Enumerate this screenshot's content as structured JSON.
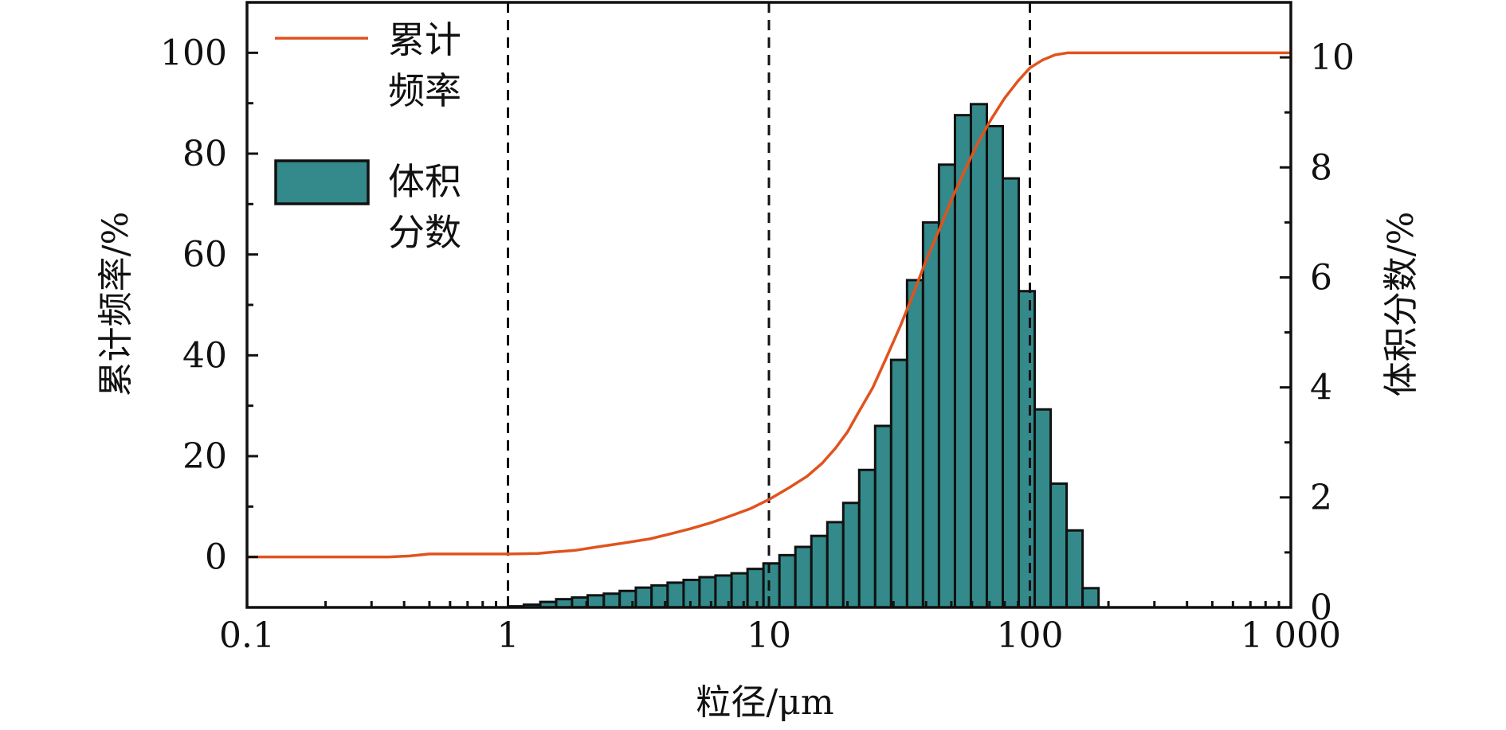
{
  "chart_data": {
    "type": "bar",
    "xlabel": "粒径/μm",
    "ylabel_left": "累计频率/%",
    "ylabel_right": "体积分数/%",
    "x_scale": "log",
    "xlim": [
      0.1,
      1000
    ],
    "x_ticks": [
      0.1,
      1,
      10,
      100,
      1000
    ],
    "x_tick_labels": [
      "0.1",
      "1",
      "10",
      "100",
      "1 000"
    ],
    "ylim_left": [
      -10,
      110
    ],
    "y_ticks_left": [
      0,
      20,
      40,
      60,
      80,
      100
    ],
    "y_tick_labels_left": [
      "0",
      "20",
      "40",
      "60",
      "80",
      "100"
    ],
    "ylim_right": [
      0,
      11
    ],
    "y_ticks_right": [
      0,
      2,
      4,
      6,
      8,
      10
    ],
    "y_tick_labels_right": [
      "0",
      "2",
      "4",
      "6",
      "8",
      "10"
    ],
    "reference_lines_x": [
      1,
      10,
      100
    ],
    "legend": {
      "position": "top-left",
      "entries": [
        {
          "series": "cumulative",
          "lines": [
            "累计",
            "频率"
          ]
        },
        {
          "series": "volume",
          "lines": [
            "体积",
            "分数"
          ]
        }
      ]
    },
    "series": [
      {
        "name": "累计频率",
        "kind": "line",
        "axis": "left",
        "color": "#E0531E",
        "x": [
          0.1,
          0.2,
          0.35,
          0.42,
          0.5,
          0.7,
          1.0,
          1.3,
          1.5,
          1.8,
          2.2,
          2.8,
          3.5,
          4.2,
          5.0,
          6.0,
          7.0,
          8.5,
          10.0,
          12.0,
          14.0,
          16.0,
          18.0,
          20.0,
          22.0,
          25.0,
          28.0,
          32.0,
          36.0,
          40.0,
          45.0,
          50.0,
          56.0,
          63.0,
          71.0,
          80.0,
          90.0,
          100.0,
          112.0,
          125.0,
          140.0,
          160.0,
          200.0,
          300.0,
          1000.0
        ],
        "values": [
          0,
          0,
          0,
          0.2,
          0.6,
          0.6,
          0.6,
          0.7,
          1.0,
          1.3,
          2.0,
          2.8,
          3.6,
          4.6,
          5.6,
          6.8,
          8.0,
          9.6,
          11.4,
          13.8,
          16.0,
          18.6,
          21.6,
          24.8,
          28.6,
          33.6,
          39.2,
          46.0,
          52.6,
          58.8,
          65.0,
          70.8,
          76.4,
          82.0,
          86.8,
          91.0,
          94.4,
          97.0,
          98.6,
          99.6,
          100,
          100,
          100,
          100,
          100
        ]
      },
      {
        "name": "体积分数",
        "kind": "bar",
        "axis": "right",
        "color": "#34898A",
        "bin_edges": [
          1.0,
          1.15,
          1.33,
          1.53,
          1.76,
          2.02,
          2.33,
          2.68,
          3.09,
          3.55,
          4.09,
          4.71,
          5.42,
          6.24,
          7.19,
          8.28,
          9.53,
          10.97,
          12.63,
          14.54,
          16.74,
          19.27,
          22.18,
          25.53,
          29.39,
          33.83,
          38.95,
          44.84,
          51.62,
          59.42,
          68.4,
          78.74,
          90.65,
          104.35,
          120.12,
          138.28,
          159.19,
          183.26
        ],
        "values": [
          0.02,
          0.05,
          0.1,
          0.15,
          0.18,
          0.22,
          0.25,
          0.3,
          0.36,
          0.4,
          0.45,
          0.5,
          0.55,
          0.58,
          0.62,
          0.7,
          0.8,
          0.95,
          1.1,
          1.3,
          1.55,
          1.9,
          2.5,
          3.3,
          4.5,
          5.95,
          7.0,
          8.05,
          8.95,
          9.15,
          8.75,
          7.8,
          5.75,
          3.6,
          2.25,
          1.4,
          0.35
        ]
      }
    ]
  }
}
